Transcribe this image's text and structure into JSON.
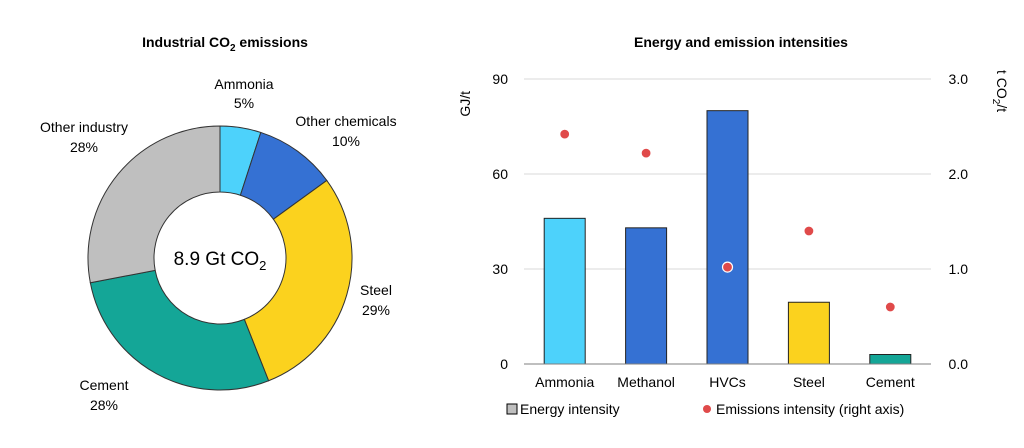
{
  "chart_data": [
    {
      "type": "pie",
      "variant": "donut",
      "title": "Industrial CO2 emissions",
      "title_main": "Industrial CO",
      "title_sub": "2",
      "title_end": " emissions",
      "center_label_main": "8.9 Gt CO",
      "center_label_sub": "2",
      "slices": [
        {
          "name": "Ammonia",
          "pct_label": "5%",
          "value": 5,
          "color": "#4dd2fb"
        },
        {
          "name": "Other chemicals",
          "pct_label": "10%",
          "value": 10,
          "color": "#3571d3"
        },
        {
          "name": "Steel",
          "pct_label": "29%",
          "value": 29,
          "color": "#fbd21e"
        },
        {
          "name": "Cement",
          "pct_label": "28%",
          "value": 28,
          "color": "#14a697"
        },
        {
          "name": "Other industry",
          "pct_label": "28%",
          "value": 28,
          "color": "#bfbfbf"
        }
      ]
    },
    {
      "type": "bar",
      "title": "Energy and emission intensities",
      "categories": [
        "Ammonia",
        "Methanol",
        "HVCs",
        "Steel",
        "Cement"
      ],
      "bar_colors": [
        "#4dd2fb",
        "#3571d3",
        "#3571d3",
        "#fbd21e",
        "#14a697"
      ],
      "series": [
        {
          "name": "Energy intensity",
          "axis": "left",
          "values": [
            46,
            43,
            80,
            19.5,
            3
          ]
        },
        {
          "name": "Emissions intensity (right axis)",
          "axis": "right",
          "type": "scatter",
          "color": "#e04a4a",
          "values": [
            2.42,
            2.22,
            1.02,
            1.4,
            0.6
          ]
        }
      ],
      "ylabel": "GJ/t",
      "y2label_main": "t CO",
      "y2label_sub": "2",
      "y2label_end": "/t",
      "ylim": [
        0,
        90
      ],
      "yticks": [
        "0",
        "30",
        "60",
        "90"
      ],
      "y2lim": [
        0,
        3.0
      ],
      "y2ticks": [
        "0.0",
        "1.0",
        "2.0",
        "3.0"
      ],
      "grid": true,
      "legend_position": "bottom"
    }
  ]
}
